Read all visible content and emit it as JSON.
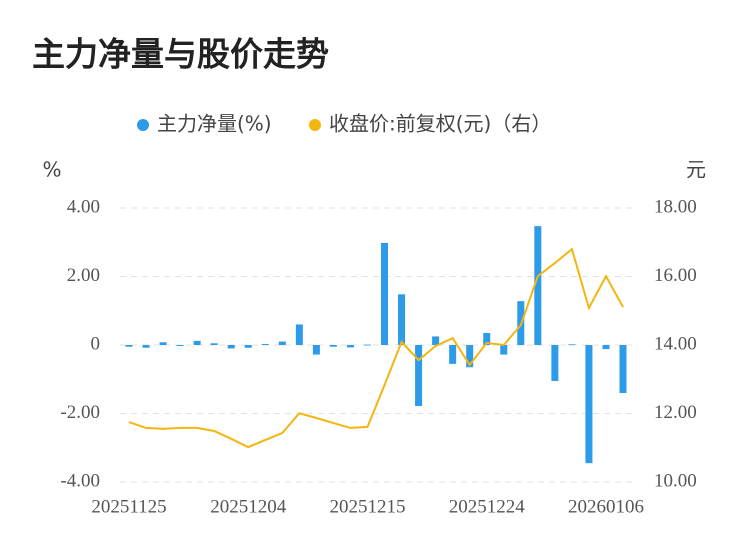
{
  "chart_data": {
    "type": "bar",
    "title": "主力净量与股价走势",
    "y_unit": "%",
    "y2_unit": "元",
    "categories": [
      "20251125",
      null,
      null,
      null,
      null,
      null,
      null,
      "20251204",
      null,
      null,
      null,
      null,
      null,
      null,
      "20251215",
      null,
      null,
      null,
      null,
      null,
      null,
      "20251224",
      null,
      null,
      null,
      null,
      null,
      null,
      "20260106",
      null
    ],
    "series": [
      {
        "name": "主力净量(%)",
        "type": "bar",
        "color": "#2b9bea",
        "values": [
          -0.05,
          -0.08,
          0.08,
          -0.03,
          0.12,
          0.05,
          -0.1,
          -0.08,
          0.03,
          0.1,
          0.6,
          -0.28,
          -0.05,
          -0.07,
          0.01,
          2.98,
          1.48,
          -1.78,
          0.25,
          -0.55,
          -0.65,
          0.35,
          -0.28,
          1.28,
          3.47,
          -1.05,
          0.02,
          -3.45,
          -0.12,
          -1.4
        ]
      },
      {
        "name": "收盘价:前复权(元)（右）",
        "type": "line",
        "axis": "y2",
        "color": "#f5b50f",
        "values": [
          11.75,
          11.58,
          11.55,
          11.58,
          11.58,
          11.49,
          11.26,
          11.02,
          11.23,
          11.43,
          12.01,
          11.87,
          11.72,
          11.58,
          11.61,
          12.83,
          14.09,
          13.56,
          13.97,
          14.2,
          13.42,
          14.06,
          14.0,
          14.58,
          16.01,
          16.39,
          16.8,
          15.08,
          16.01,
          15.11
        ]
      }
    ],
    "ylim": [
      -4,
      4
    ],
    "yticks": [
      {
        "value": 4,
        "label": "4.00"
      },
      {
        "value": 2,
        "label": "2.00"
      },
      0,
      {
        "value": -2,
        "label": "-2.00"
      },
      {
        "value": -4,
        "label": "-4.00"
      }
    ],
    "y2lim": [
      10,
      18
    ],
    "y2ticks": [
      {
        "value": 18,
        "label": "18.00"
      },
      {
        "value": 16,
        "label": "16.00"
      },
      {
        "value": 14,
        "label": "14.00"
      },
      {
        "value": 12,
        "label": "12.00"
      },
      {
        "value": 10,
        "label": "10.00"
      }
    ],
    "grid": true
  }
}
